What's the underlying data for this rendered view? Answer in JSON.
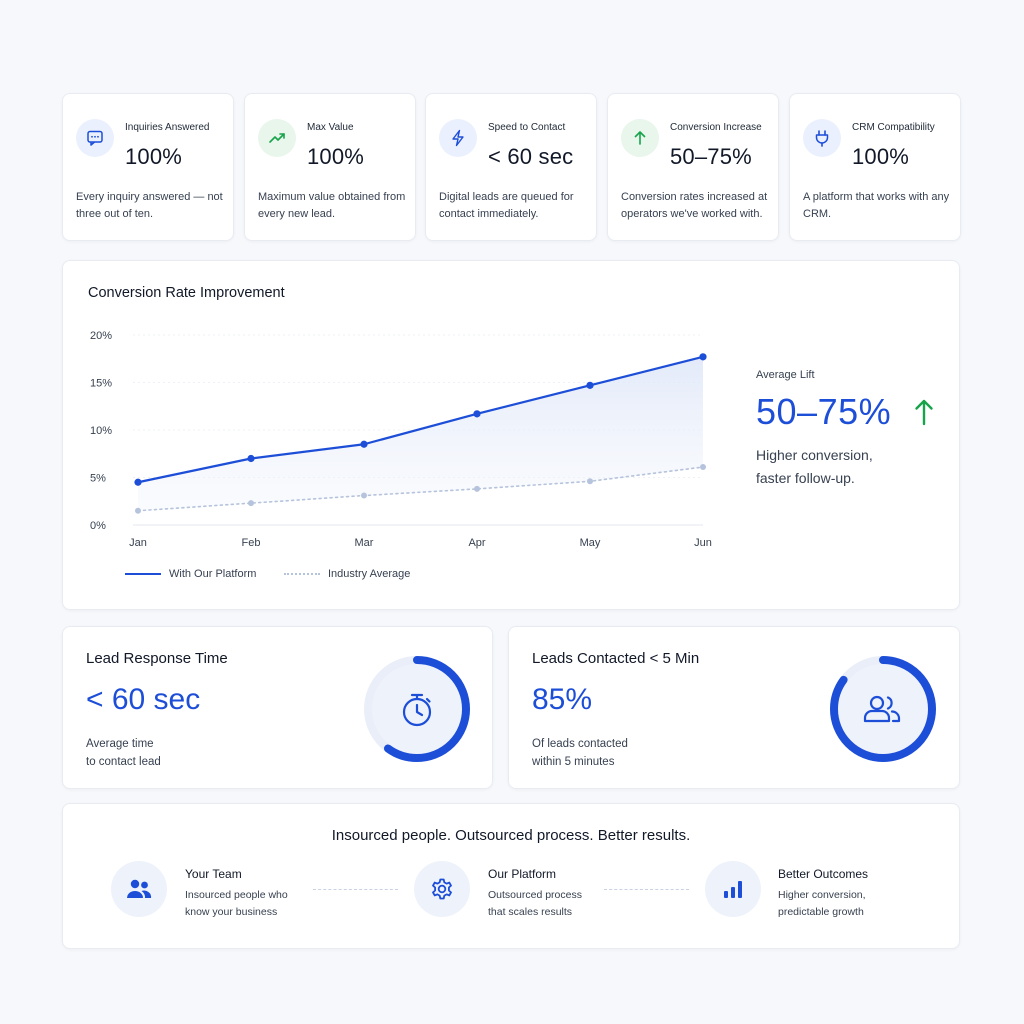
{
  "stats": [
    {
      "label": "Inquiries Answered",
      "value": "100%",
      "desc": "Every inquiry answered — not three out of ten.",
      "icon": "chat-bubble-icon"
    },
    {
      "label": "Max Value",
      "value": "100%",
      "desc": "Maximum value obtained from every new lead.",
      "icon": "trend-up-icon"
    },
    {
      "label": "Speed to Contact",
      "value": "< 60 sec",
      "desc": "Digital leads are queued for contact immediately.",
      "icon": "lightning-icon"
    },
    {
      "label": "Conversion Increase",
      "value": "50–75%",
      "desc": "Conversion rates increased at operators we've worked with.",
      "icon": "arrow-up-icon"
    },
    {
      "label": "CRM Compatibility",
      "value": "100%",
      "desc": "A platform that works with any CRM.",
      "icon": "plug-icon"
    }
  ],
  "chart_data": {
    "type": "line",
    "title": "Conversion Rate Improvement",
    "categories": [
      "Jan",
      "Feb",
      "Mar",
      "Apr",
      "May",
      "Jun"
    ],
    "y_ticks": [
      "0%",
      "5%",
      "10%",
      "15%",
      "20%"
    ],
    "ylim": [
      0,
      20
    ],
    "series": [
      {
        "name": "With Our Platform",
        "values": [
          4.5,
          7,
          8.5,
          11.7,
          14.7,
          17.7
        ],
        "color": "#1d4ed8",
        "style": "solid",
        "area_fill": true
      },
      {
        "name": "Industry Average",
        "values": [
          1.5,
          2.3,
          3.1,
          3.8,
          4.6,
          6.1
        ],
        "color": "#b6c3dc",
        "style": "dotted"
      }
    ],
    "grid": true,
    "legend": "bottom-left"
  },
  "side_panel": {
    "label": "Average Lift",
    "value": "50–75%",
    "desc_line1": "Higher conversion,",
    "desc_line2": "faster follow-up."
  },
  "metrics": [
    {
      "title": "Lead Response Time",
      "value": "< 60 sec",
      "desc_line1": "Average time",
      "desc_line2": "to contact lead",
      "icon": "stopwatch-icon",
      "progress": 0.6
    },
    {
      "title": "Leads Contacted < 5 Min",
      "value": "85%",
      "desc_line1": "Of leads contacted",
      "desc_line2": "within 5 minutes",
      "icon": "users-icon",
      "progress": 0.85
    }
  ],
  "bottom": {
    "title": "Insourced people. Outsourced process. Better results.",
    "pillars": [
      {
        "title": "Your Team",
        "desc_line1": "Insourced people who",
        "desc_line2": "know your business",
        "icon": "team-icon"
      },
      {
        "title": "Our Platform",
        "desc_line1": "Outsourced process",
        "desc_line2": "that scales results",
        "icon": "gear-icon"
      },
      {
        "title": "Better Outcomes",
        "desc_line1": "Higher conversion,",
        "desc_line2": "predictable growth",
        "icon": "bar-chart-icon"
      }
    ]
  },
  "colors": {
    "accent": "#1d4ed8",
    "positive": "#16a34a",
    "muted": "#b6c3dc"
  }
}
